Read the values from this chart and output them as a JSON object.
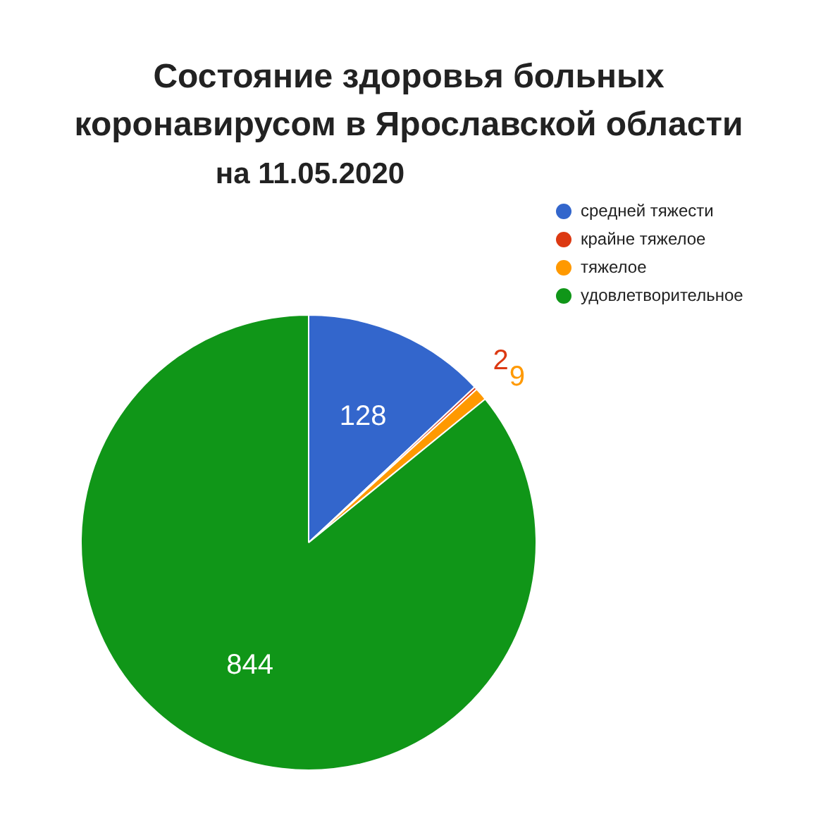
{
  "chart_data": {
    "type": "pie",
    "title": "Состояние здоровья больных коронавирусом в Ярославской области",
    "subtitle": "на 11.05.2020",
    "categories": [
      "средней тяжести",
      "крайне тяжелое",
      "тяжелое",
      "удовлетворительное"
    ],
    "values": [
      128,
      2,
      9,
      844
    ],
    "colors": [
      "#3366cc",
      "#dc3912",
      "#ff9900",
      "#109618"
    ],
    "data_labels": true,
    "legend": "top right"
  }
}
